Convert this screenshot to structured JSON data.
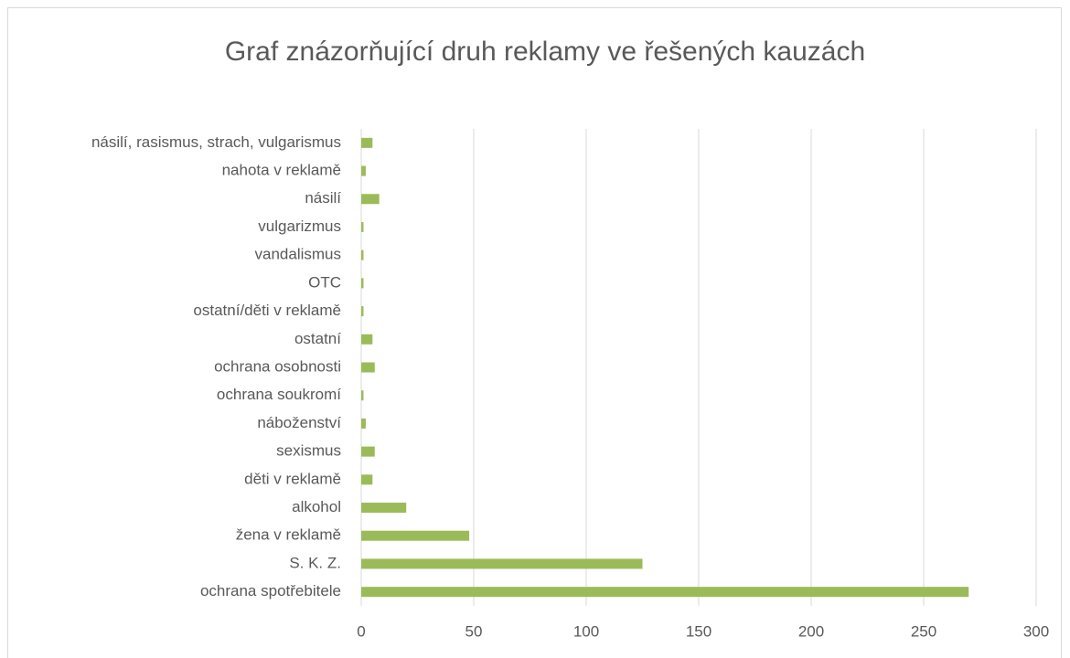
{
  "chart_data": {
    "type": "bar",
    "orientation": "horizontal",
    "title": "Graf znázorňující druh reklamy ve řešených kauzách",
    "categories": [
      "ochrana spotřebitele",
      "S. K. Z.",
      "žena v reklamě",
      "alkohol",
      "děti v reklamě",
      "sexismus",
      "náboženství",
      "ochrana soukromí",
      "ochrana osobnosti",
      "ostatní",
      "ostatní/děti v reklamě",
      "OTC",
      "vandalismus",
      "vulgarizmus",
      "násilí",
      "nahota v reklamě",
      "násilí, rasismus, strach, vulgarismus"
    ],
    "values": [
      270,
      125,
      48,
      20,
      5,
      6,
      2,
      1,
      6,
      5,
      1,
      1,
      1,
      1,
      8,
      2,
      5
    ],
    "color": "#9bbb59",
    "xlim": [
      0,
      300
    ],
    "xticks": [
      0,
      50,
      100,
      150,
      200,
      250,
      300
    ],
    "grid": true
  }
}
